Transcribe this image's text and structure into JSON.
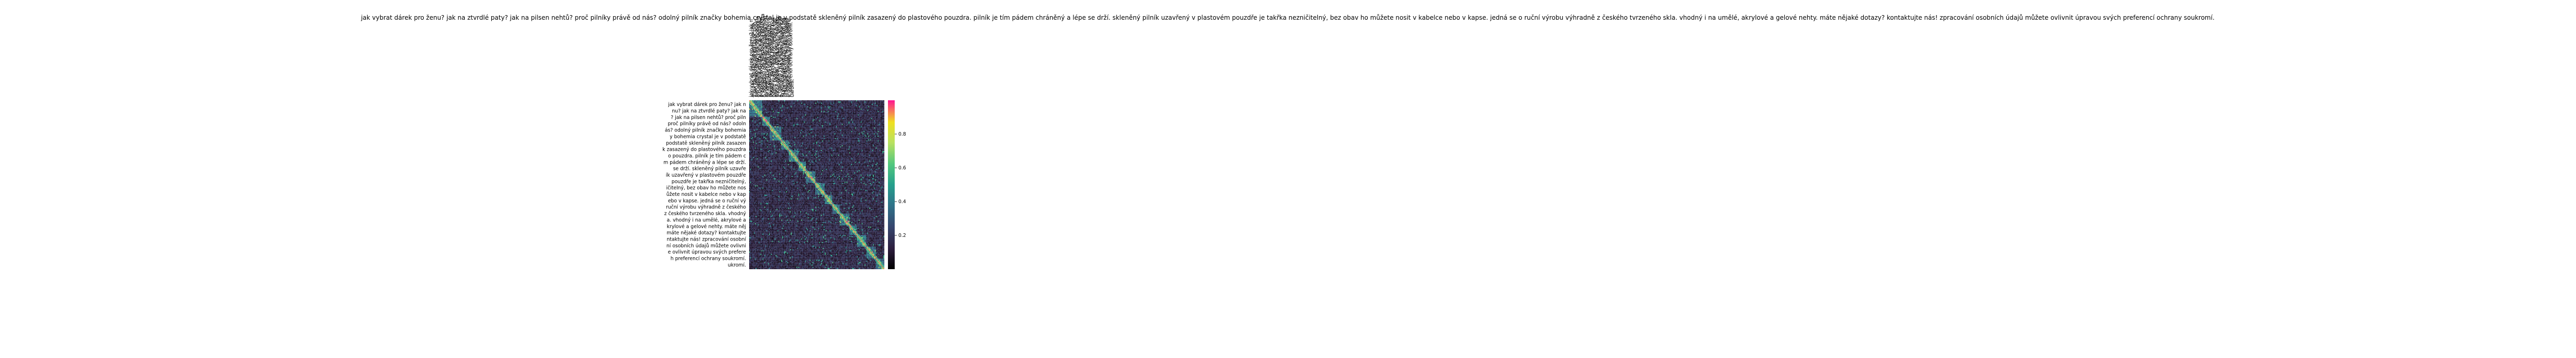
{
  "chart_data": {
    "type": "heatmap",
    "title": "jak vybrat dárek pro ženu? jak na ztvrdlé paty? jak na pilsen nehtů? proč pilníky právě od nás? odolný pilník značky bohemia crystal je v podstatě skleněný pilník zasazený do plastového pouzdra. pilník je tím pádem chráněný a lépe se drží. skleněný pilník uzavřený v plastovém pouzdře je takřka nezničitelný, bez obav ho můžete nosit v kabelce nebo v kapse. jedná se o ruční výrobu výhradně z českého tvrzeného skla. vhodný i na umělé, akrylové a gelové nehty. máte nějaké dotazy? kontaktujte nás! zpracování osobních údajů můžete ovlivnit úpravou svých preferencí ochrany soukromí.",
    "row_labels": [
      "jak vybrat dárek pro ženu? jak n",
      "nu? jak na ztvrdlé paty? jak na",
      "? jak na pilsen nehtů? proč piln",
      "proč pilníky právě od nás? odoln",
      "ás? odolný pilník značky bohemia",
      "y bohemia crystal je v podstatě",
      "podstatě skleněný pilník zasazen",
      "k zasazený do plastového pouzdra",
      "o pouzdra. pilník je tím pádem c",
      "m pádem chráněný a lépe se drží.",
      "se drží. skleněný pilník uzavře",
      "ík uzavřený v plastovém pouzdře",
      "pouzdře je takřka nezničitelný,",
      "ičitelný, bez obav ho můžete nos",
      "ůžete nosit v kabelce nebo v kap",
      "ebo v kapse. jedná se o ruční vý",
      "ruční výrobu výhradně z českého",
      "z českého tvrzeného skla. vhodný",
      "a. vhodný i na umělé, akrylové a",
      "krylové a gelové nehty. máte něj",
      "máte nějaké dotazy? kontaktujte",
      "ntaktujte nás! zpracování osobní",
      "ní osobních údajů můžete ovlivni",
      "e ovlivnit úpravou svých prefere",
      "h preferencí ochrany soukromí.",
      "ukromí."
    ],
    "col_labels": [
      "jak vybrat dárek pro ženu? jak n",
      "nu? jak na ztvrdlé paty? jak na",
      "? jak na pilsen nehtů? proč piln",
      "proč pilníky právě od nás? odoln",
      "ás? odolný pilník značky bohemia",
      "y bohemia crystal je v podstatě",
      "podstatě skleněný pilník zasazen",
      "k zasazený do plastového pouzdra",
      "o pouzdra. pilník je tím pádem c",
      "m pádem chráněný a lépe se drží.",
      "se drží. skleněný pilník uzavře",
      "ík uzavřený v plastovém pouzdře",
      "pouzdře je takřka nezničitelný,",
      "ičitelný, bez obav ho můžete nos",
      "ůžete nosit v kabelce nebo v kap",
      "ebo v kapse. jedná se o ruční vý",
      "ruční výrobu výhradně z českého",
      "z českého tvrzeného skla. vhodný",
      "a. vhodný i na umělé, akrylové a",
      "krylové a gelové nehty. máte něj",
      "máte nějaké dotazy? kontaktujte",
      "ntaktujte nás! zpracování osobní",
      "ní osobních údajů můžete ovlivni",
      "e ovlivnit úpravou svých prefere",
      "h preferencí ochrany soukromí.",
      "ukromí."
    ],
    "grid_cells": 143,
    "value_range": [
      0,
      1
    ],
    "colorbar": {
      "ticks": [
        0.2,
        0.4,
        0.6,
        0.8
      ],
      "tick_labels": [
        "0.2",
        "0.4",
        "0.6",
        "0.8"
      ],
      "stops": [
        "#000000",
        "#2d1e3e",
        "#36466e",
        "#2f7389",
        "#26a08c",
        "#52c77e",
        "#b9e160",
        "#f0e020",
        "#ff1493"
      ]
    },
    "legend": "colorbar right of heatmap"
  }
}
